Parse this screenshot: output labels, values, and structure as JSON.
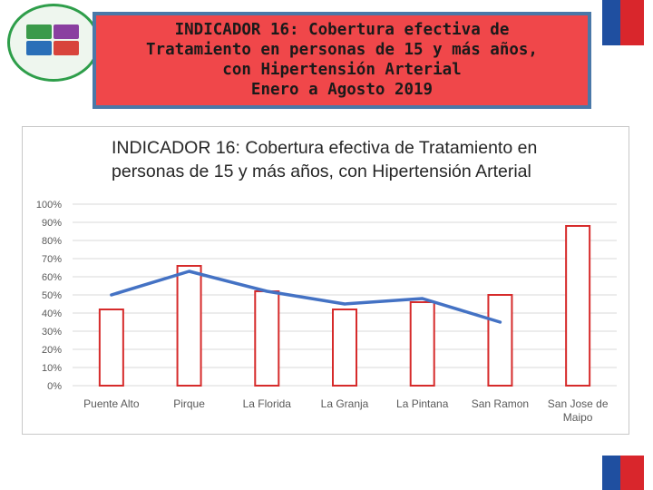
{
  "header": {
    "title_lines": [
      "INDICADOR 16: Cobertura efectiva de",
      "Tratamiento en personas de 15 y más años,",
      "con Hipertensión Arterial",
      "Enero a Agosto 2019"
    ]
  },
  "colors": {
    "header_bg": "#f0474a",
    "header_border": "#4a78a8",
    "bar_stroke": "#d62b2b",
    "line": "#4472c4",
    "flag_blue": "#1f4fa0",
    "flag_red": "#d9262c"
  },
  "icons": {
    "logo": "health-service-logo-icon",
    "flag_top": "chile-flag-stripe-icon",
    "flag_bottom": "chile-flag-stripe-icon"
  },
  "chart_data": {
    "type": "bar",
    "title_lines": [
      "INDICADOR 16: Cobertura efectiva de Tratamiento en",
      "personas de 15 y más años, con Hipertensión Arterial"
    ],
    "categories": [
      "Puente Alto",
      "Pirque",
      "La Florida",
      "La Granja",
      "La Pintana",
      "San Ramon",
      "San Jose de Maipo"
    ],
    "series": [
      {
        "type": "bar",
        "values": [
          42,
          66,
          52,
          42,
          46,
          50,
          88
        ]
      },
      {
        "type": "line",
        "values": [
          50,
          63,
          52,
          45,
          48,
          35,
          null
        ]
      }
    ],
    "yticks": [
      "0%",
      "10%",
      "20%",
      "30%",
      "40%",
      "50%",
      "60%",
      "70%",
      "80%",
      "90%",
      "100%"
    ],
    "ylim": [
      0,
      100
    ],
    "grid": true,
    "legend": "none"
  }
}
